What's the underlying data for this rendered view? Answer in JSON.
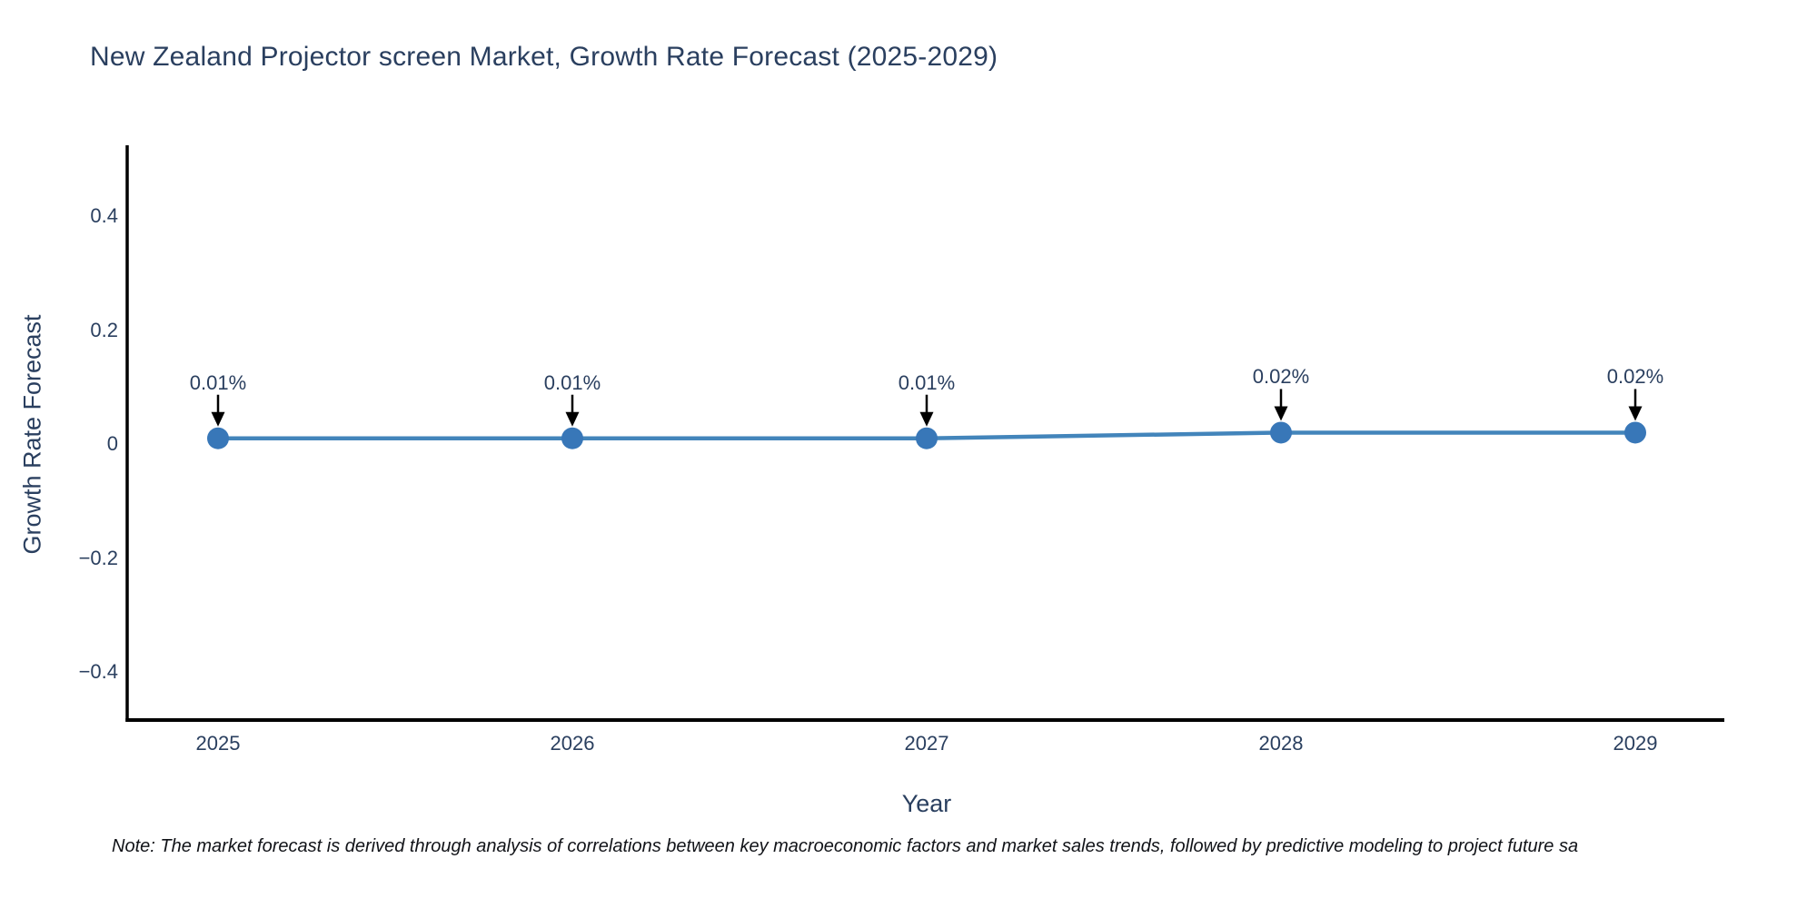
{
  "title": "New Zealand Projector screen Market, Growth Rate Forecast (2025-2029)",
  "note": "Note: The market forecast is derived through analysis of correlations between key macroeconomic factors and market sales trends, followed by predictive modeling to project future sa",
  "x_axis": {
    "label": "Year",
    "tick_labels": [
      "2025",
      "2026",
      "2027",
      "2028",
      "2029"
    ]
  },
  "y_axis": {
    "label": "Growth Rate Forecast",
    "tick_labels": [
      "0.4",
      "0.2",
      "0",
      "−0.2",
      "−0.4"
    ],
    "tick_values": [
      0.4,
      0.2,
      0,
      -0.2,
      -0.4
    ]
  },
  "colors": {
    "text": "#2a3f5f",
    "axis_line": "#000000",
    "series_line": "#4385bb",
    "marker": "#3877b8",
    "arrow": "#000000",
    "background": "#ffffff"
  },
  "chart_data": {
    "type": "line",
    "x": [
      2025,
      2026,
      2027,
      2028,
      2029
    ],
    "series": [
      {
        "name": "Growth Rate Forecast",
        "values": [
          0.01,
          0.01,
          0.01,
          0.02,
          0.02
        ]
      }
    ],
    "point_labels": [
      "0.01%",
      "0.01%",
      "0.01%",
      "0.02%",
      "0.02%"
    ],
    "title": "New Zealand Projector screen Market, Growth Rate Forecast (2025-2029)",
    "xlabel": "Year",
    "ylabel": "Growth Rate Forecast",
    "ylim": [
      -0.485,
      0.525
    ],
    "xlim": [
      2024.74,
      2029.25
    ],
    "grid": false,
    "legend": "none",
    "markers": true,
    "annotations_style": "value label with downward arrow to each point"
  }
}
